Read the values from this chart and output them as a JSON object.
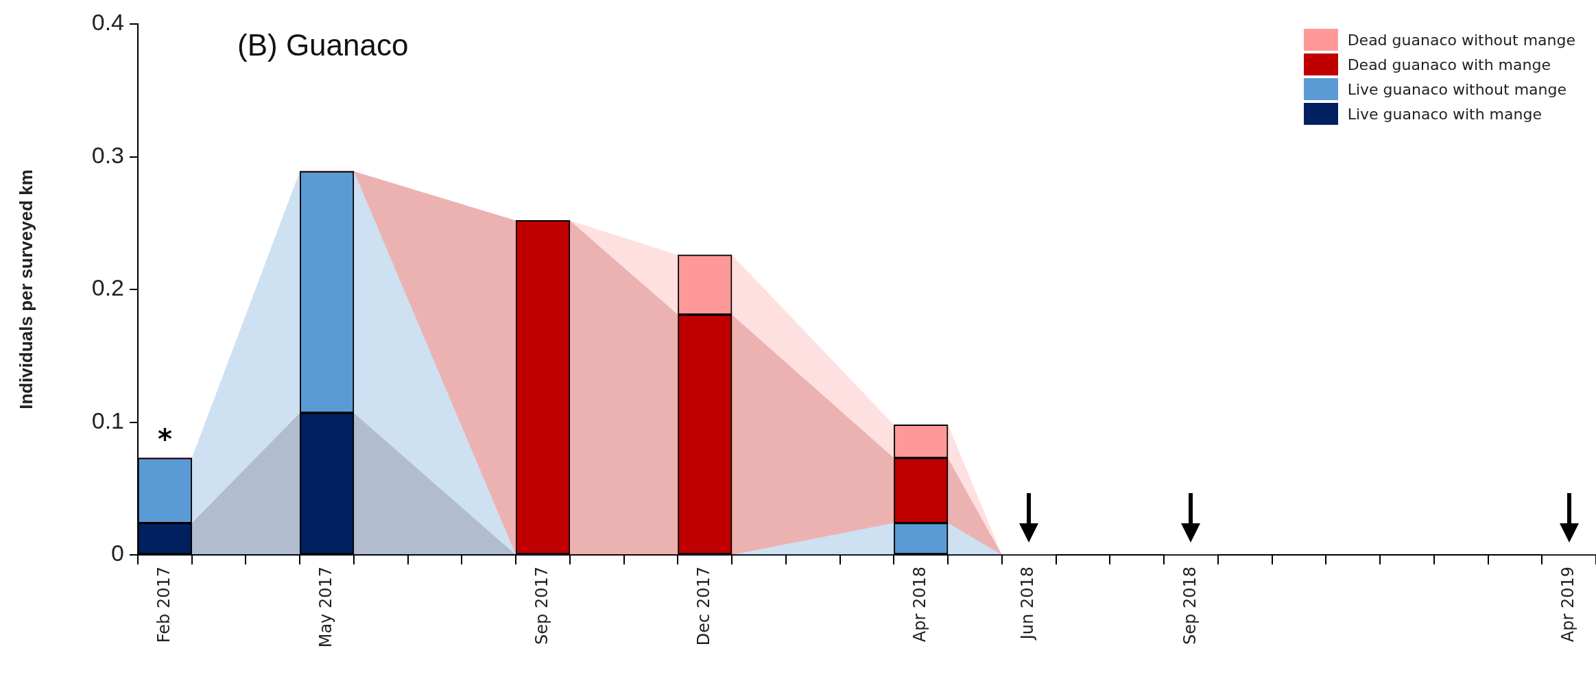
{
  "chart_data": {
    "type": "bar",
    "stacked": true,
    "title": "(B) Guanaco",
    "ylabel": "Individuals per surveyed km",
    "categories": [
      "Feb 2017",
      null,
      null,
      "May 2017",
      null,
      null,
      null,
      "Sep 2017",
      null,
      null,
      "Dec 2017",
      null,
      null,
      null,
      "Apr 2018",
      null,
      "Jun 2018",
      null,
      null,
      "Sep 2018",
      null,
      null,
      null,
      null,
      null,
      null,
      "Apr 2019"
    ],
    "series": [
      {
        "name": "Live guanaco with mange",
        "color": "#002060",
        "values": [
          0.024,
          null,
          null,
          0.107,
          null,
          null,
          null,
          0,
          null,
          null,
          0,
          null,
          null,
          null,
          0,
          null,
          0,
          null,
          null,
          0,
          null,
          null,
          null,
          null,
          null,
          null,
          0
        ]
      },
      {
        "name": "Live guanaco without mange",
        "color": "#5b9bd5",
        "values": [
          0.049,
          null,
          null,
          0.182,
          null,
          null,
          null,
          0,
          null,
          null,
          0,
          null,
          null,
          null,
          0.024,
          null,
          0,
          null,
          null,
          0,
          null,
          null,
          null,
          null,
          null,
          null,
          0
        ]
      },
      {
        "name": "Dead guanaco with mange",
        "color": "#c00000",
        "values": [
          0,
          null,
          null,
          0,
          null,
          null,
          null,
          0.252,
          null,
          null,
          0.181,
          null,
          null,
          null,
          0.049,
          null,
          0,
          null,
          null,
          0,
          null,
          null,
          null,
          null,
          null,
          null,
          0
        ]
      },
      {
        "name": "Dead guanaco without mange",
        "color": "#ff9999",
        "values": [
          0,
          null,
          null,
          0,
          null,
          null,
          null,
          0,
          null,
          null,
          0.045,
          null,
          null,
          null,
          0.025,
          null,
          0,
          null,
          null,
          0,
          null,
          null,
          null,
          null,
          null,
          null,
          0
        ]
      }
    ],
    "ylim": [
      0,
      0.4
    ],
    "yticks": [
      0,
      0.1,
      0.2,
      0.3,
      0.4
    ],
    "grid": false,
    "legend": "top right",
    "annotations": [
      {
        "text": "*",
        "x": "Feb 2017",
        "y": 0.073
      }
    ]
  }
}
